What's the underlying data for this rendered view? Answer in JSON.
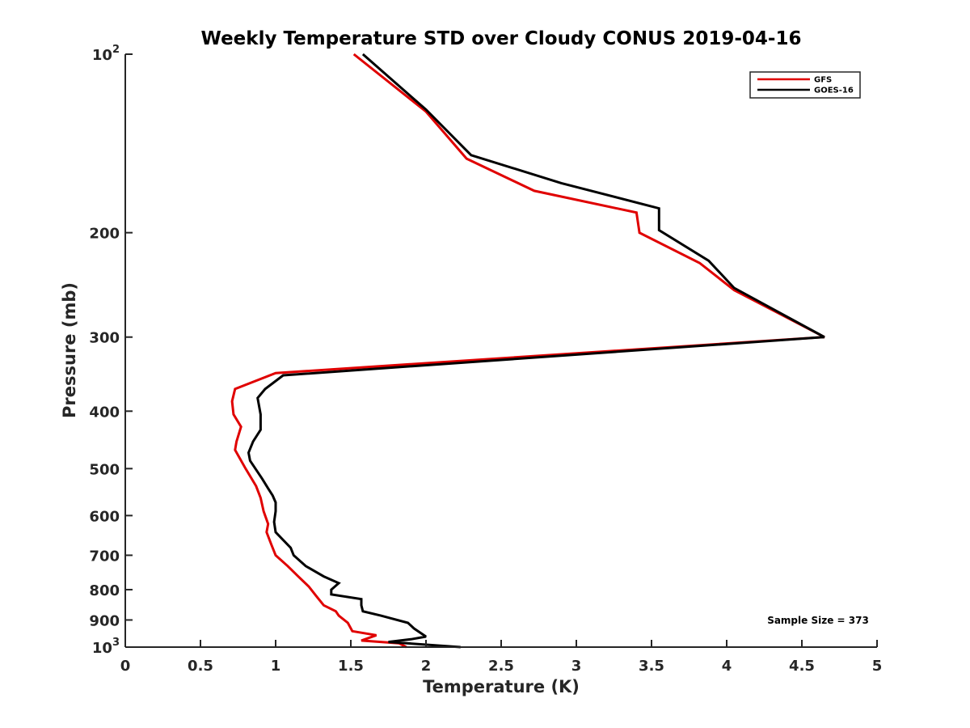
{
  "chart_data": {
    "type": "line",
    "title": "Weekly Temperature STD over Cloudy CONUS 2019-04-16",
    "xlabel": "Temperature (K)",
    "ylabel": "Pressure (mb)",
    "xlim": [
      0,
      5
    ],
    "ylim": [
      100,
      1000
    ],
    "yscale": "log",
    "y_reversed": true,
    "x_ticks": [
      0,
      0.5,
      1,
      1.5,
      2,
      2.5,
      3,
      3.5,
      4,
      4.5,
      5
    ],
    "x_tick_labels": [
      "0",
      "0.5",
      "1",
      "1.5",
      "2",
      "2.5",
      "3",
      "3.5",
      "4",
      "4.5",
      "5"
    ],
    "y_ticks": [
      {
        "value": 100,
        "base": "10",
        "exp": "2"
      },
      {
        "value": 200,
        "label": "200"
      },
      {
        "value": 300,
        "label": "300"
      },
      {
        "value": 400,
        "label": "400"
      },
      {
        "value": 500,
        "label": "500"
      },
      {
        "value": 600,
        "label": "600"
      },
      {
        "value": 700,
        "label": "700"
      },
      {
        "value": 800,
        "label": "800"
      },
      {
        "value": 900,
        "label": "900"
      },
      {
        "value": 1000,
        "base": "10",
        "exp": "3"
      }
    ],
    "legend_position": "top-right",
    "annotation": "Sample Size = 373",
    "series": [
      {
        "name": "GFS",
        "color": "#e00000",
        "points": [
          [
            1.52,
            100
          ],
          [
            2.0,
            125
          ],
          [
            2.27,
            150
          ],
          [
            2.72,
            170
          ],
          [
            3.4,
            185
          ],
          [
            3.42,
            200
          ],
          [
            3.82,
            225
          ],
          [
            4.05,
            250
          ],
          [
            4.65,
            300
          ],
          [
            1.0,
            345
          ],
          [
            0.73,
            367
          ],
          [
            0.71,
            385
          ],
          [
            0.72,
            405
          ],
          [
            0.77,
            425
          ],
          [
            0.74,
            450
          ],
          [
            0.73,
            465
          ],
          [
            0.8,
            500
          ],
          [
            0.87,
            535
          ],
          [
            0.9,
            560
          ],
          [
            0.92,
            590
          ],
          [
            0.95,
            620
          ],
          [
            0.94,
            640
          ],
          [
            0.97,
            670
          ],
          [
            1.0,
            700
          ],
          [
            1.08,
            730
          ],
          [
            1.15,
            760
          ],
          [
            1.22,
            790
          ],
          [
            1.27,
            820
          ],
          [
            1.32,
            850
          ],
          [
            1.4,
            870
          ],
          [
            1.42,
            885
          ],
          [
            1.48,
            910
          ],
          [
            1.51,
            940
          ],
          [
            1.67,
            955
          ],
          [
            1.57,
            975
          ],
          [
            1.82,
            985
          ],
          [
            1.87,
            1000
          ]
        ]
      },
      {
        "name": "GOES-16",
        "color": "#000000",
        "points": [
          [
            1.58,
            100
          ],
          [
            2.0,
            124
          ],
          [
            2.3,
            148
          ],
          [
            2.9,
            165
          ],
          [
            3.55,
            182
          ],
          [
            3.55,
            198
          ],
          [
            3.88,
            223
          ],
          [
            4.05,
            248
          ],
          [
            4.65,
            300
          ],
          [
            1.05,
            348
          ],
          [
            0.93,
            367
          ],
          [
            0.88,
            380
          ],
          [
            0.9,
            405
          ],
          [
            0.9,
            430
          ],
          [
            0.85,
            450
          ],
          [
            0.82,
            470
          ],
          [
            0.83,
            485
          ],
          [
            0.91,
            520
          ],
          [
            0.95,
            540
          ],
          [
            0.98,
            555
          ],
          [
            1.0,
            570
          ],
          [
            1.0,
            590
          ],
          [
            0.99,
            615
          ],
          [
            1.0,
            640
          ],
          [
            1.1,
            680
          ],
          [
            1.12,
            700
          ],
          [
            1.2,
            730
          ],
          [
            1.32,
            760
          ],
          [
            1.42,
            780
          ],
          [
            1.37,
            800
          ],
          [
            1.37,
            815
          ],
          [
            1.57,
            830
          ],
          [
            1.57,
            850
          ],
          [
            1.58,
            870
          ],
          [
            1.7,
            885
          ],
          [
            1.88,
            910
          ],
          [
            1.92,
            930
          ],
          [
            2.0,
            960
          ],
          [
            1.9,
            970
          ],
          [
            1.75,
            980
          ],
          [
            2.23,
            1000
          ]
        ]
      }
    ]
  }
}
